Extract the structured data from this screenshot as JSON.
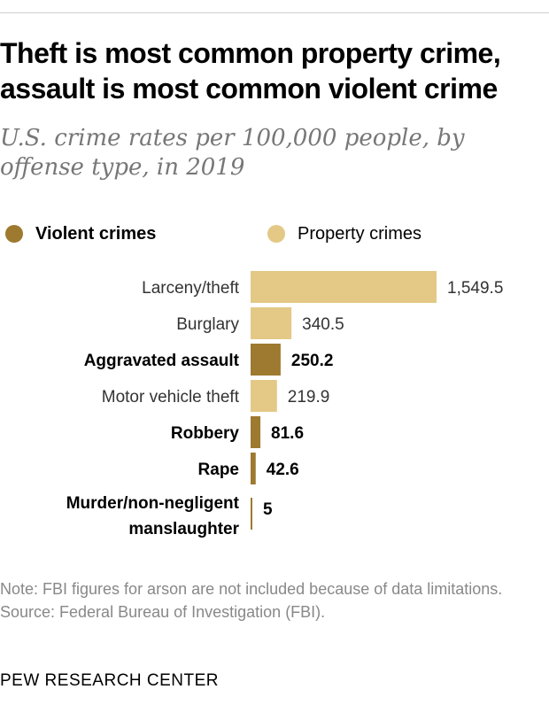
{
  "header": {
    "title": "Theft is most common property crime, assault is most common violent crime",
    "subtitle": "U.S. crime rates per 100,000 people, by offense type, in 2019"
  },
  "legend": {
    "violent_label": "Violent crimes",
    "property_label": "Property crimes"
  },
  "colors": {
    "violent": "#9d7a2f",
    "property": "#e3c985"
  },
  "chart_data": {
    "type": "bar",
    "orientation": "horizontal",
    "categories": [
      "Larceny/theft",
      "Burglary",
      "Aggravated assault",
      "Motor vehicle theft",
      "Robbery",
      "Rape",
      "Murder/non-negligent manslaughter"
    ],
    "values": [
      1549.5,
      340.5,
      250.2,
      219.9,
      81.6,
      42.6,
      5
    ],
    "value_labels": [
      "1,549.5",
      "340.5",
      "250.2",
      "219.9",
      "81.6",
      "42.6",
      "5"
    ],
    "groups": [
      "Property crimes",
      "Property crimes",
      "Violent crimes",
      "Property crimes",
      "Violent crimes",
      "Violent crimes",
      "Violent crimes"
    ],
    "series": [
      {
        "name": "Violent crimes",
        "categories": [
          "Aggravated assault",
          "Robbery",
          "Rape",
          "Murder/non-negligent manslaughter"
        ]
      },
      {
        "name": "Property crimes",
        "categories": [
          "Larceny/theft",
          "Burglary",
          "Motor vehicle theft"
        ]
      }
    ],
    "title": "Theft is most common property crime, assault is most common violent crime",
    "subtitle": "U.S. crime rates per 100,000 people, by offense type, in 2019",
    "xlim": [
      0,
      1549.5
    ],
    "grid": false,
    "legend_position": "top"
  },
  "footer": {
    "note": "Note: FBI figures for arson are not included because of data limitations.",
    "source": "Source: Federal Bureau of Investigation (FBI)."
  },
  "brand": "PEW RESEARCH CENTER"
}
